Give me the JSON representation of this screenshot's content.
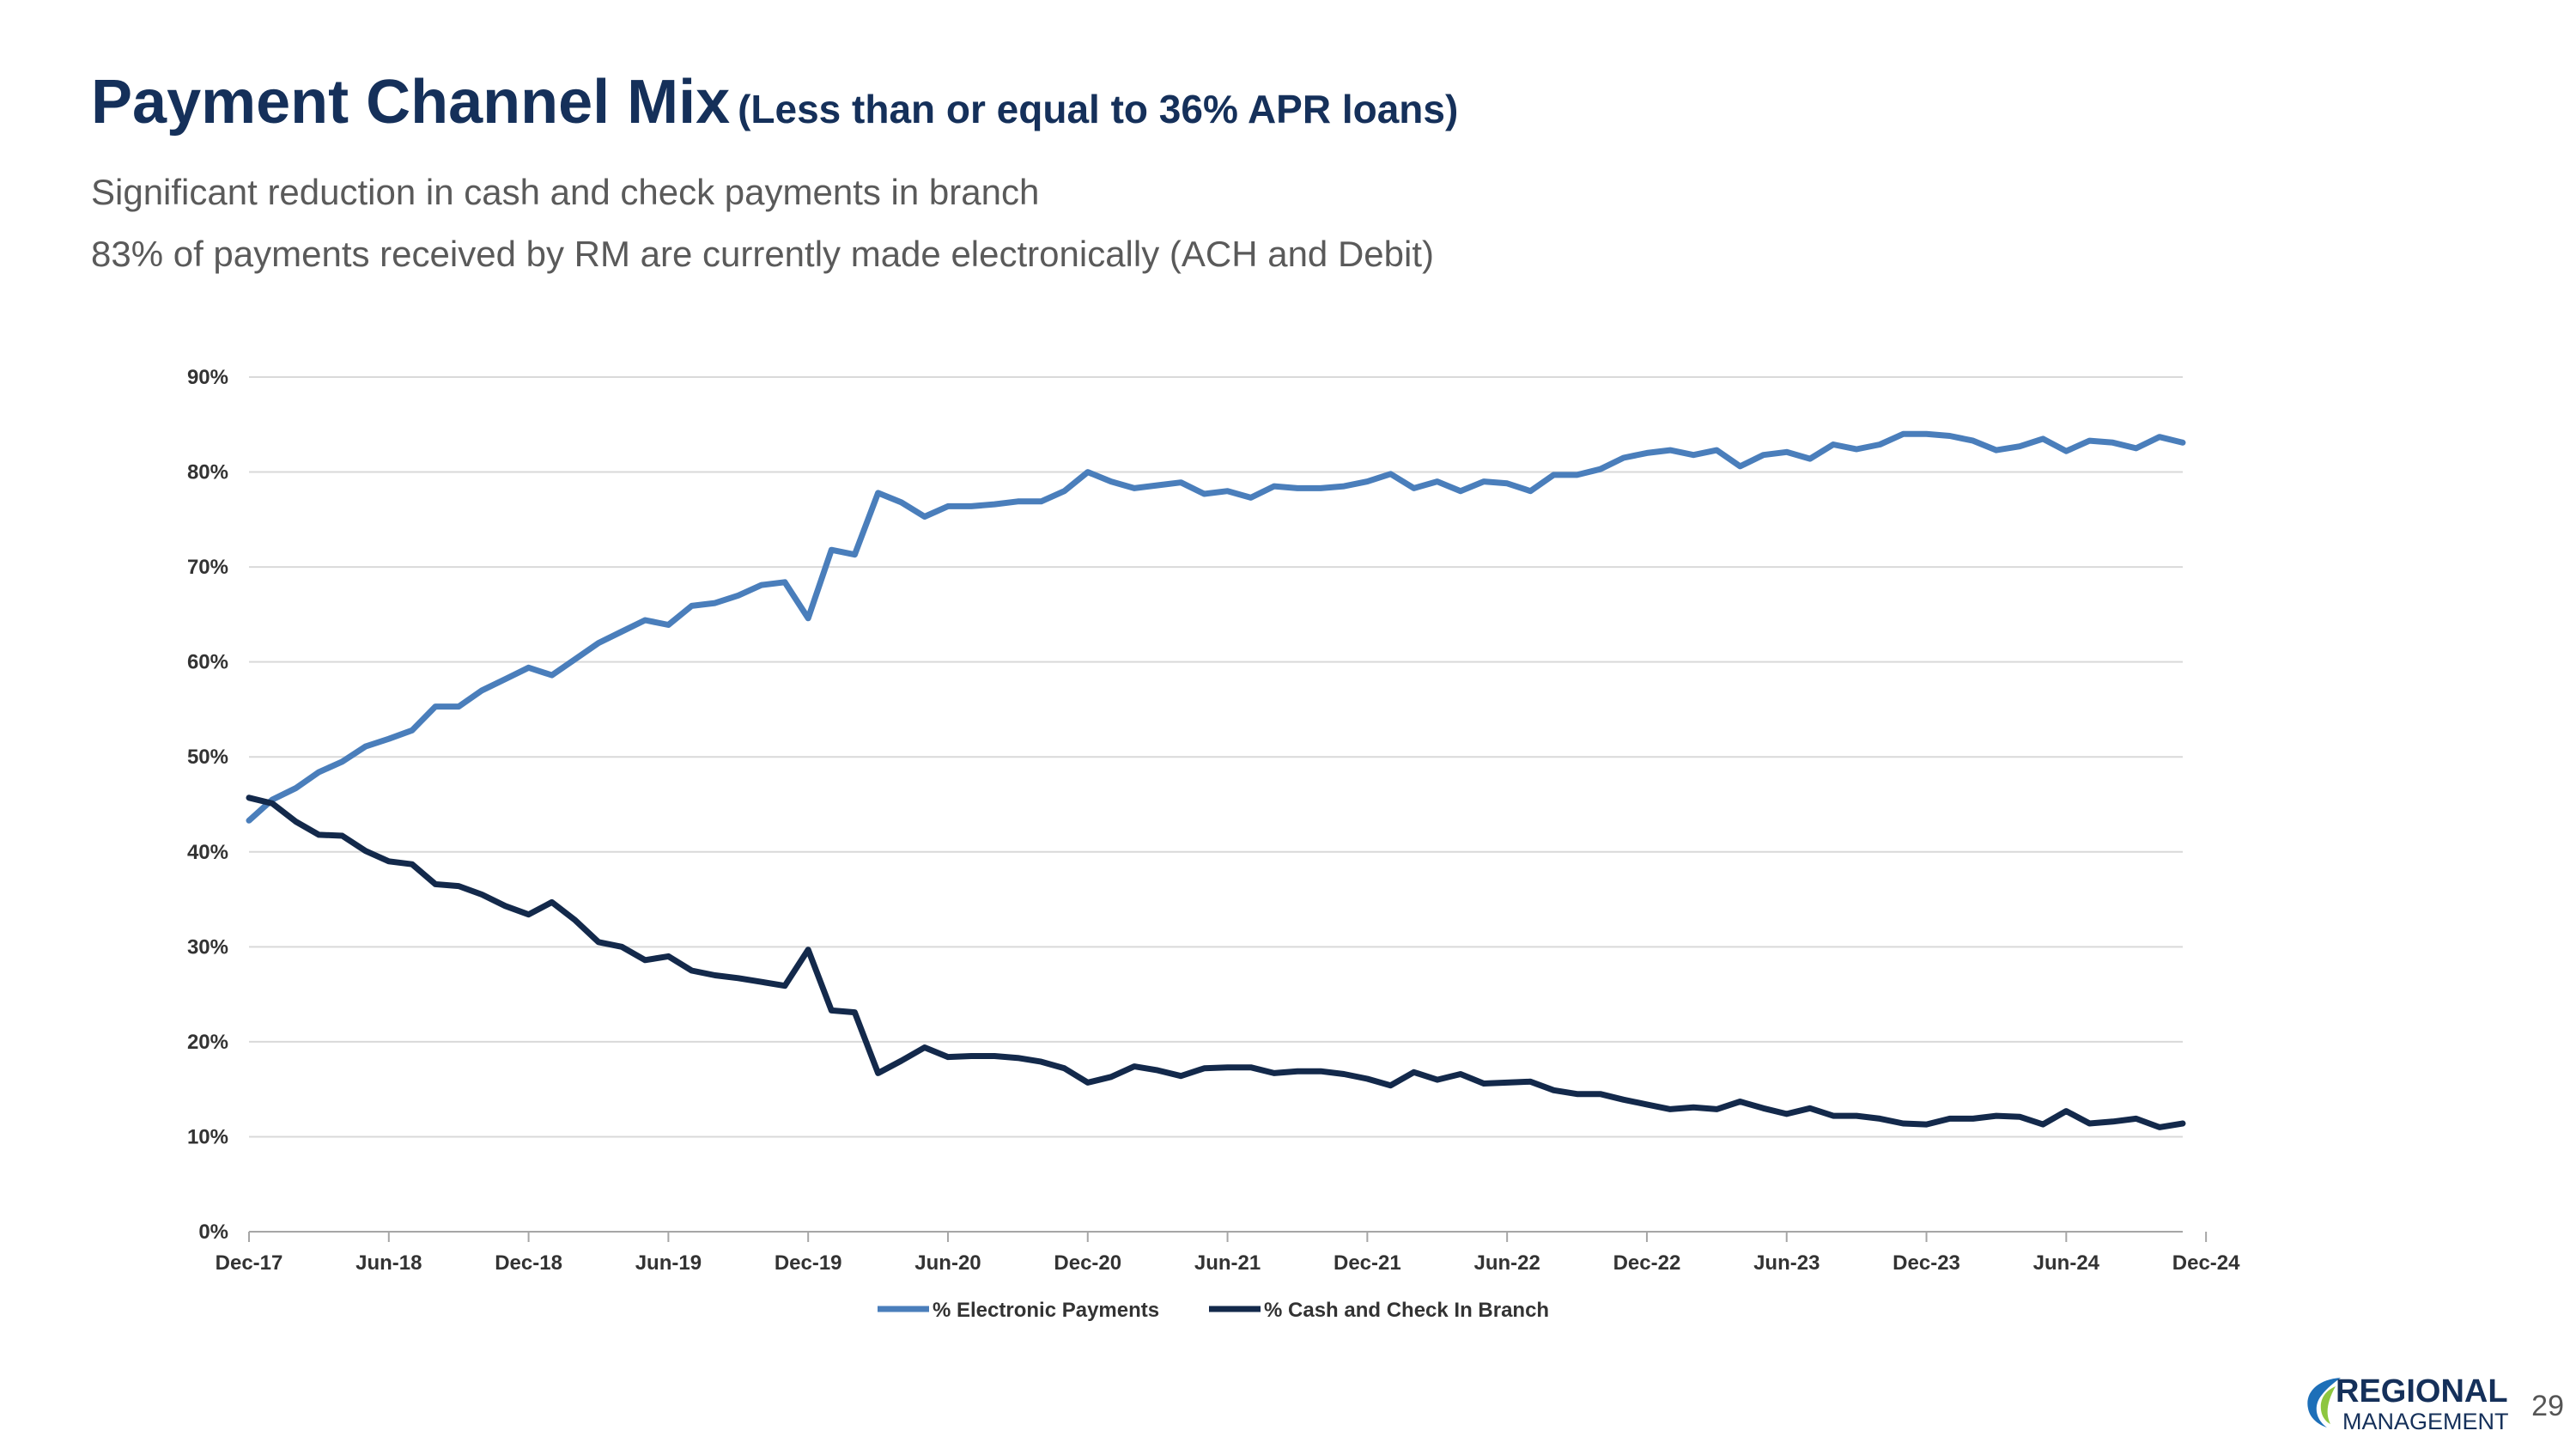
{
  "title": "Payment Channel Mix",
  "title_qualifier": "(Less than or equal to 36% APR loans)",
  "subtitle_lines": [
    "Significant reduction in cash and check payments in branch",
    "83% of payments received by RM are currently made electronically (ACH and Debit)"
  ],
  "page_number": "29",
  "logo": {
    "line1": "REGIONAL",
    "line2": "MANAGEMENT"
  },
  "colors": {
    "electronic": "#4a7ebb",
    "cash": "#13294b",
    "title": "#15305a",
    "grid": "#d9d9d9"
  },
  "chart_data": {
    "type": "line",
    "title": "",
    "xlabel": "",
    "ylabel": "",
    "ylim": [
      0,
      0.9
    ],
    "y_ticks": [
      0,
      0.1,
      0.2,
      0.3,
      0.4,
      0.5,
      0.6,
      0.7,
      0.8,
      0.9
    ],
    "y_tick_labels": [
      "0%",
      "10%",
      "20%",
      "30%",
      "40%",
      "50%",
      "60%",
      "70%",
      "80%",
      "90%"
    ],
    "x_tick_labels": [
      "Dec-17",
      "Jun-18",
      "Dec-18",
      "Jun-19",
      "Dec-19",
      "Jun-20",
      "Dec-20",
      "Jun-21",
      "Dec-21",
      "Jun-22",
      "Dec-22",
      "Jun-23",
      "Dec-23",
      "Jun-24",
      "Dec-24"
    ],
    "x_start": "Dec-17",
    "x_end": "Dec-24",
    "x_frequency": "monthly",
    "grid": true,
    "legend_position": "bottom",
    "series": [
      {
        "name": "% Electronic Payments",
        "values": [
          0.433,
          0.455,
          0.467,
          0.484,
          0.495,
          0.511,
          0.519,
          0.528,
          0.553,
          0.553,
          0.57,
          0.582,
          0.594,
          0.586,
          0.603,
          0.62,
          0.632,
          0.644,
          0.639,
          0.659,
          0.662,
          0.67,
          0.681,
          0.684,
          0.646,
          0.718,
          0.713,
          0.778,
          0.768,
          0.753,
          0.764,
          0.764,
          0.766,
          0.769,
          0.769,
          0.78,
          0.8,
          0.79,
          0.783,
          0.786,
          0.789,
          0.777,
          0.78,
          0.773,
          0.785,
          0.783,
          0.783,
          0.785,
          0.79,
          0.798,
          0.783,
          0.79,
          0.78,
          0.79,
          0.788,
          0.78,
          0.797,
          0.797,
          0.803,
          0.815,
          0.82,
          0.823,
          0.818,
          0.823,
          0.806,
          0.818,
          0.821,
          0.814,
          0.829,
          0.824,
          0.829,
          0.84,
          0.84,
          0.838,
          0.833,
          0.823,
          0.827,
          0.835,
          0.822,
          0.833,
          0.831,
          0.825,
          0.837,
          0.831
        ]
      },
      {
        "name": "% Cash and Check In Branch",
        "values": [
          0.457,
          0.451,
          0.432,
          0.418,
          0.417,
          0.401,
          0.39,
          0.387,
          0.366,
          0.364,
          0.355,
          0.343,
          0.334,
          0.347,
          0.328,
          0.305,
          0.3,
          0.286,
          0.29,
          0.275,
          0.27,
          0.267,
          0.263,
          0.259,
          0.297,
          0.233,
          0.231,
          0.167,
          0.18,
          0.194,
          0.184,
          0.185,
          0.185,
          0.183,
          0.179,
          0.172,
          0.157,
          0.163,
          0.174,
          0.17,
          0.164,
          0.172,
          0.173,
          0.173,
          0.167,
          0.169,
          0.169,
          0.166,
          0.161,
          0.154,
          0.168,
          0.16,
          0.166,
          0.156,
          0.157,
          0.158,
          0.149,
          0.145,
          0.145,
          0.139,
          0.134,
          0.129,
          0.131,
          0.129,
          0.137,
          0.13,
          0.124,
          0.13,
          0.122,
          0.122,
          0.119,
          0.114,
          0.113,
          0.119,
          0.119,
          0.122,
          0.121,
          0.113,
          0.127,
          0.114,
          0.116,
          0.119,
          0.11,
          0.114
        ]
      }
    ]
  }
}
